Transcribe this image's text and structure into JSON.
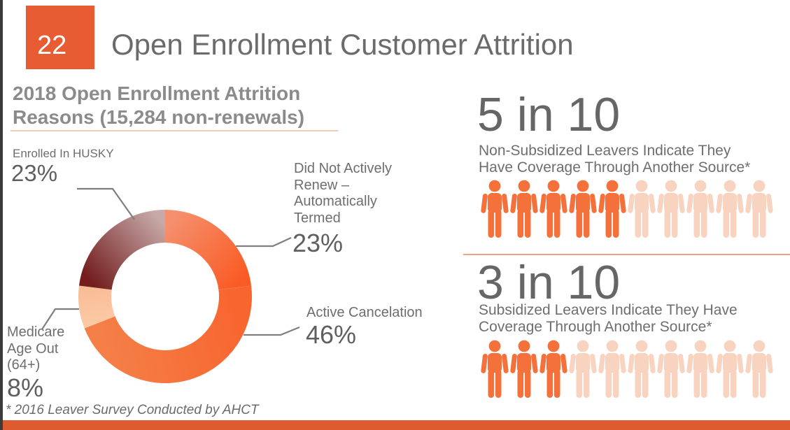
{
  "slide": {
    "page_number": "22",
    "title": "Open Enrollment Customer Attrition",
    "footnote": "* 2016 Leaver Survey Conducted by AHCT"
  },
  "donut_section": {
    "heading": "2018 Open Enrollment Attrition\nReasons (15,284 non-renewals)",
    "callouts": {
      "husky": {
        "label": "Enrolled In HUSKY",
        "value": "23%"
      },
      "did_not_renew": {
        "label": "Did Not Actively\nRenew –\nAutomatically\nTermed",
        "value": "23%"
      },
      "active_cancel": {
        "label": "Active Cancelation",
        "value": "46%"
      },
      "medicare": {
        "label": "Medicare\nAge Out\n(64+)",
        "value": "8%"
      }
    }
  },
  "chart_data": [
    {
      "type": "pie",
      "subtype": "donut",
      "title": "2018 Open Enrollment Attrition Reasons (15,284 non-renewals)",
      "total_label": "15,284 non-renewals",
      "categories": [
        "Did Not Actively Renew – Automatically Termed",
        "Active Cancelation",
        "Medicare Age Out (64+)",
        "Enrolled In HUSKY"
      ],
      "values": [
        23,
        46,
        8,
        23
      ],
      "unit": "%",
      "start_angle_deg": 0,
      "direction": "clockwise",
      "segment_gradients": [
        [
          "#F5906E",
          "#FA5B24"
        ],
        [
          "#F8652F",
          "#F47F47"
        ],
        [
          "#FCC9A5",
          "#F9BD96"
        ],
        [
          "#731D1D",
          "#C6A9A8"
        ]
      ]
    },
    {
      "type": "pictograph",
      "ratio_label": "5 in 10",
      "description": "Non-Subsidized Leavers Indicate They\nHave Coverage Through Another Source*",
      "filled": 5,
      "total": 10
    },
    {
      "type": "pictograph",
      "ratio_label": "3 in 10",
      "description": "Subsidized Leavers Indicate They Have\nCoverage Through Another Source*",
      "filled": 3,
      "total": 10
    }
  ],
  "colors": {
    "accent": "#E75C33",
    "bottom_bar": "#DD5B2F",
    "title_text": "#6B6B6B",
    "heading_text": "#8B8B8B",
    "body_text": "#6E6E6E",
    "value_text": "#5F5F5F",
    "leader_line": "#7F7F7F",
    "icon_filled": "#F4713B",
    "icon_empty": "#F8D3C0",
    "divider": "#F2A383",
    "heading_underline": "#EBCDB9",
    "left_edge": "#3B3B3B"
  }
}
